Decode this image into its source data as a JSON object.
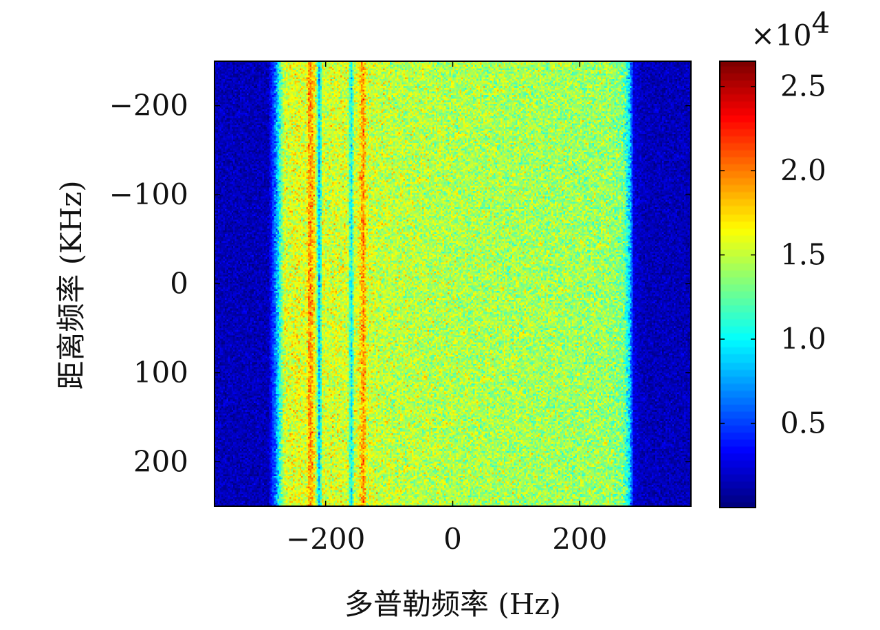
{
  "chart_data": {
    "type": "heatmap",
    "title": "",
    "xlabel": "多普勒频率 (Hz)",
    "ylabel": "距离频率 (KHz)",
    "xlim": [
      -375,
      375
    ],
    "ylim": [
      -250,
      250
    ],
    "y_inverted": true,
    "x_ticks": [
      {
        "value": -200,
        "label": "−200"
      },
      {
        "value": 0,
        "label": "0"
      },
      {
        "value": 200,
        "label": "200"
      }
    ],
    "y_ticks": [
      {
        "value": -200,
        "label": "−200"
      },
      {
        "value": -100,
        "label": "−100"
      },
      {
        "value": 0,
        "label": "0"
      },
      {
        "value": 100,
        "label": "100"
      },
      {
        "value": 200,
        "label": "200"
      }
    ],
    "grid": false,
    "colormap": "jet",
    "colorbar": {
      "range": [
        0,
        26500
      ],
      "multiplier": "×10",
      "exponent": "4",
      "ticks": [
        {
          "value": 5000,
          "label": "0.5"
        },
        {
          "value": 10000,
          "label": "1.0"
        },
        {
          "value": 15000,
          "label": "1.5"
        },
        {
          "value": 20000,
          "label": "2.0"
        },
        {
          "value": 25000,
          "label": "2.5"
        }
      ]
    },
    "profile_across_doppler": {
      "description_values_in_data_units": true,
      "x": [
        -375,
        -290,
        -280,
        -272,
        -265,
        -245,
        -230,
        -225,
        -215,
        -210,
        -205,
        -190,
        -165,
        -160,
        -155,
        -150,
        -140,
        -135,
        -120,
        0,
        250,
        270,
        278,
        285,
        300,
        375
      ],
      "values": [
        1500,
        1500,
        6000,
        11000,
        15500,
        16000,
        15500,
        20000,
        15500,
        8000,
        15500,
        15500,
        15500,
        9000,
        15500,
        15500,
        19500,
        15500,
        15000,
        14500,
        14000,
        13000,
        9000,
        2500,
        1500,
        1500
      ]
    }
  }
}
